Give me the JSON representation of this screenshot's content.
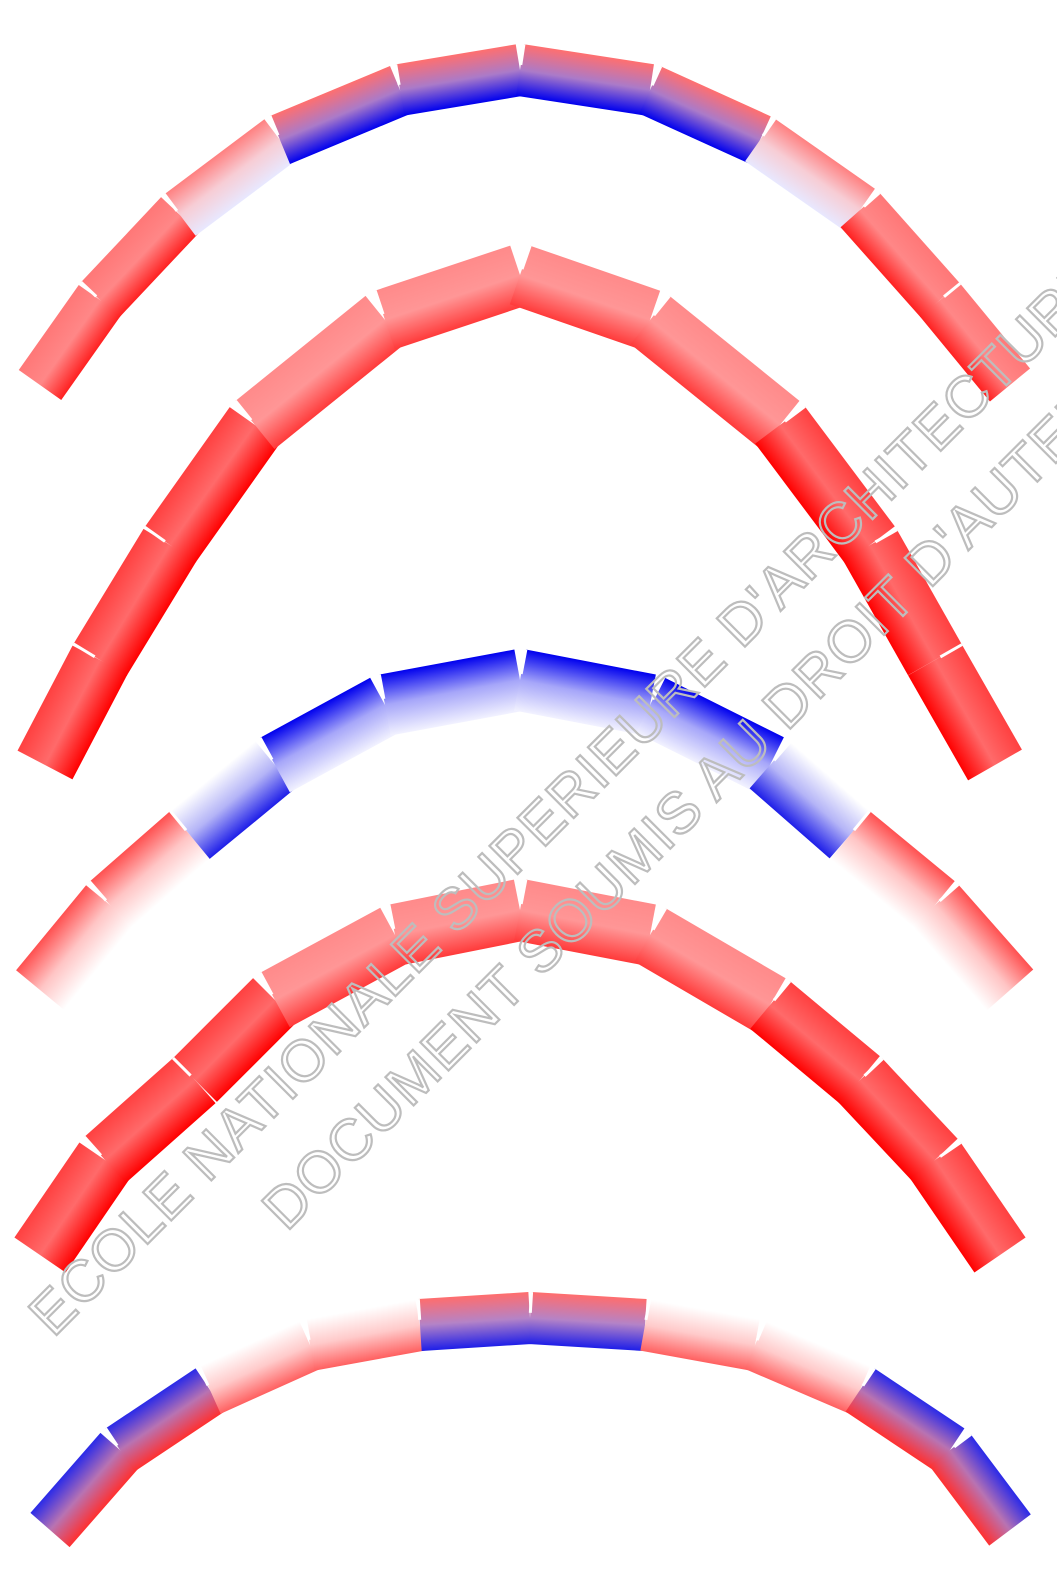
{
  "figure": {
    "arches": [
      {
        "id": "arch-1",
        "gradient": [
          "#ff6a6a",
          "#ffffff",
          "#2a2ae8"
        ],
        "pattern": "red-outer-blue-crown"
      },
      {
        "id": "arch-2",
        "gradient": [
          "#ff2a2a",
          "#ff5555",
          "#ff8080"
        ],
        "pattern": "solid-red"
      },
      {
        "id": "arch-3",
        "gradient": [
          "#ff3030",
          "#ffffff",
          "#1f1fe6"
        ],
        "pattern": "blue-crown-red-ends"
      },
      {
        "id": "arch-4",
        "gradient": [
          "#ff2a2a",
          "#ff6a6a",
          "#ff9a9a"
        ],
        "pattern": "solid-red"
      },
      {
        "id": "arch-5",
        "gradient": [
          "#ff5252",
          "#ffffff",
          "#2b2bea"
        ],
        "pattern": "mixed-red-blue"
      }
    ],
    "colors": {
      "red": "#ff0000",
      "blue": "#0000ee",
      "white": "#ffffff"
    }
  },
  "watermark": {
    "line1": "ECOLE NATIONALE SUPERIEURE D'ARCHITECTURE DE TOULOUSE",
    "line2": "DOCUMENT SOUMIS AU DROIT D'AUTEUR"
  }
}
